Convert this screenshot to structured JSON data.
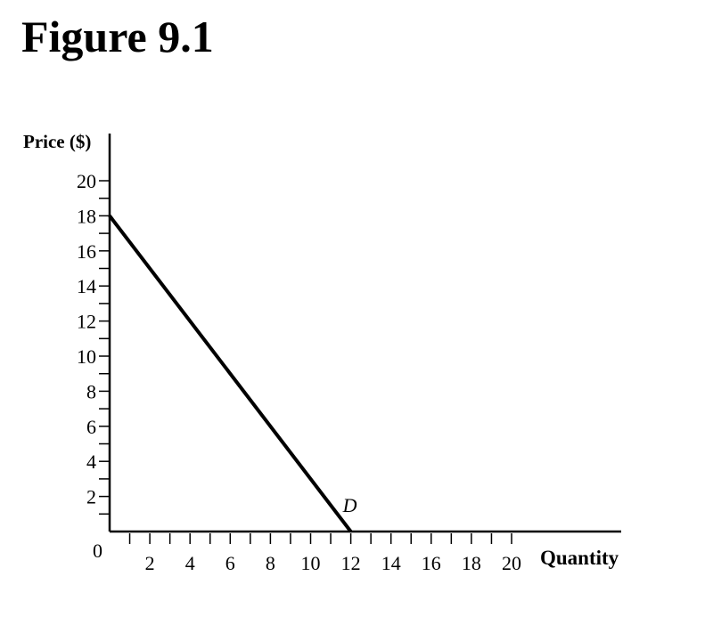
{
  "title": "Figure 9.1",
  "chart_data": {
    "type": "line",
    "title": "Figure 9.1",
    "xlabel": "Quantity",
    "ylabel": "Price ($)",
    "xlim": [
      0,
      22
    ],
    "ylim": [
      0,
      22
    ],
    "xticks": [
      2,
      4,
      6,
      8,
      10,
      12,
      14,
      16,
      18,
      20
    ],
    "yticks": [
      2,
      4,
      6,
      8,
      10,
      12,
      14,
      16,
      18,
      20
    ],
    "origin_label": "0",
    "grid": false,
    "series": [
      {
        "name": "D",
        "x": [
          0,
          12
        ],
        "y": [
          18,
          0
        ],
        "color": "#000000"
      }
    ]
  }
}
